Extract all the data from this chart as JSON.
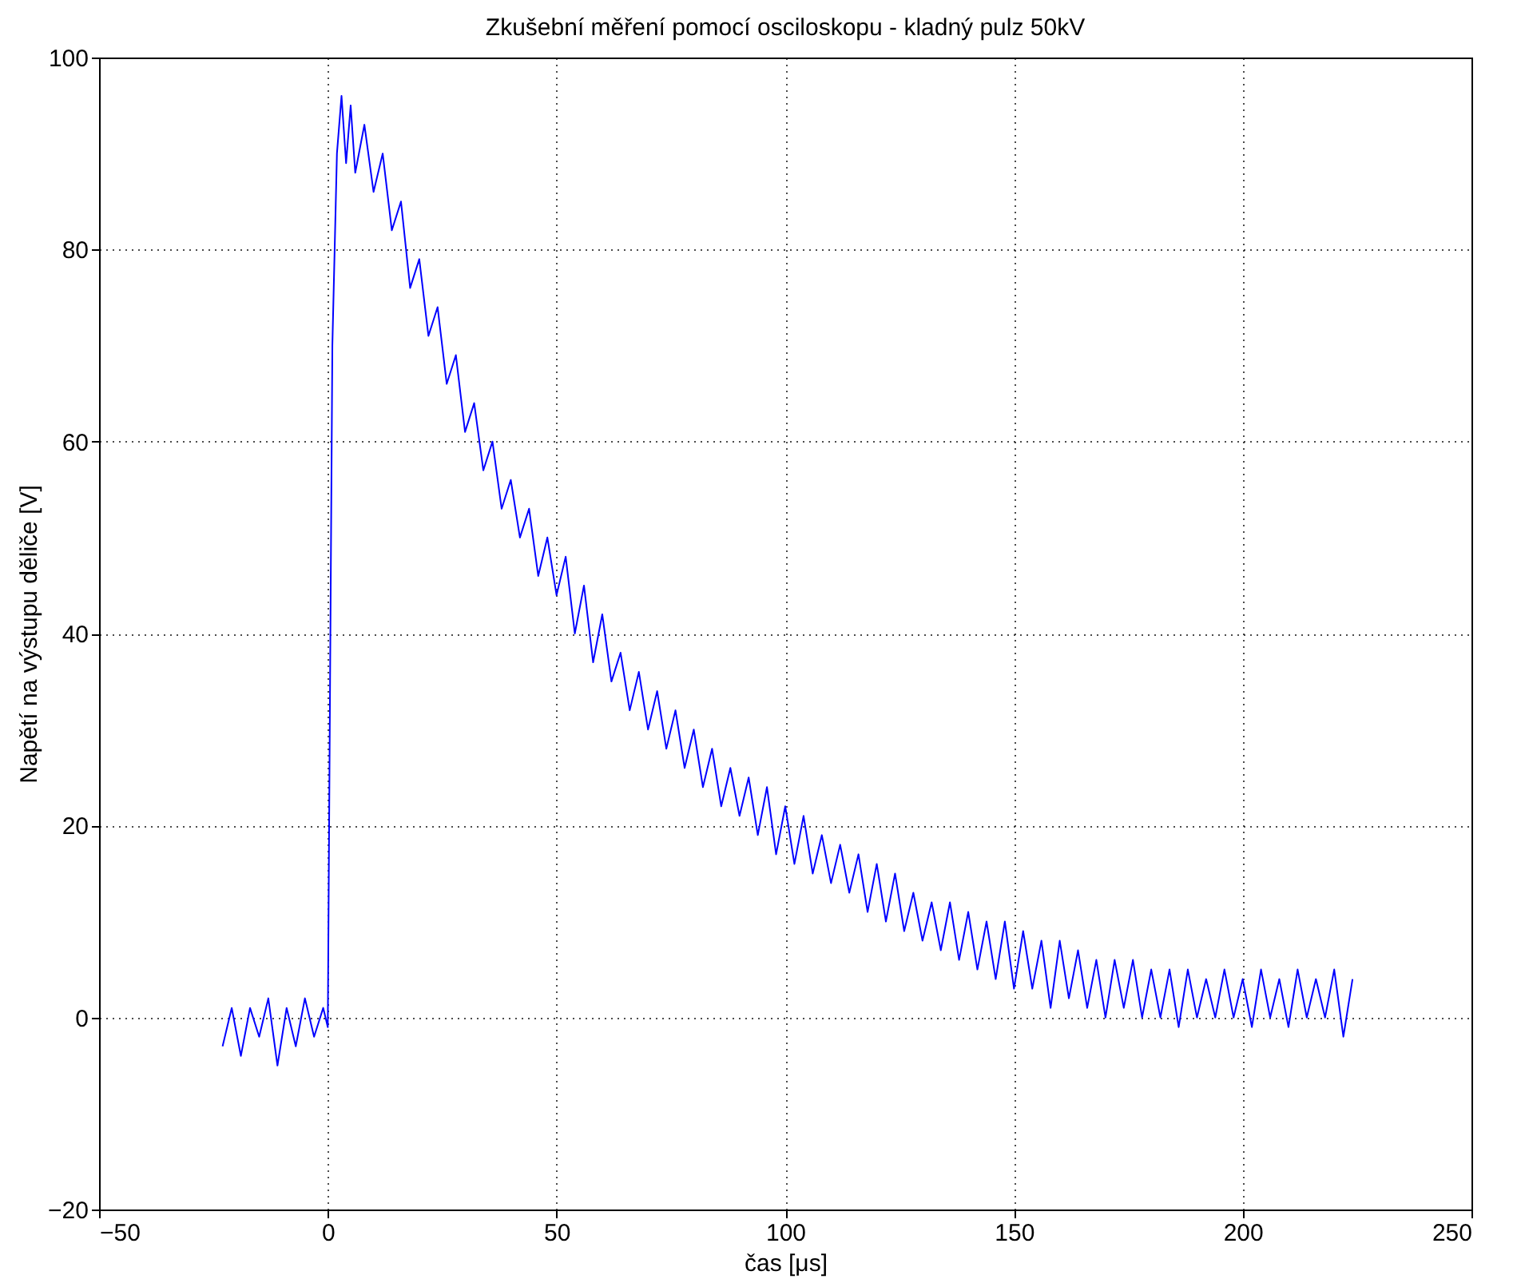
{
  "chart_data": {
    "type": "line",
    "title": "Zkušební měření pomocí osciloskopu - kladný pulz 50kV",
    "xlabel": "čas [μs]",
    "ylabel": "Napětí na výstupu děliče [V]",
    "xlim": [
      -50,
      250
    ],
    "xticks": [
      -50,
      0,
      50,
      100,
      150,
      200,
      250
    ],
    "ylim": [
      -20,
      100
    ],
    "yticks": [
      -20,
      0,
      20,
      40,
      60,
      80,
      100
    ],
    "grid": true,
    "line_style": "solid",
    "marker": "none",
    "series": [
      {
        "color": "#0000ff",
        "x": [
          -23,
          -21,
          -19,
          -17,
          -15,
          -13,
          -11,
          -9,
          -7,
          -5,
          -3,
          -1,
          0,
          0.5,
          1,
          2,
          3,
          4,
          5,
          6,
          8,
          10,
          12,
          14,
          16,
          18,
          20,
          22,
          24,
          26,
          28,
          30,
          32,
          34,
          36,
          38,
          40,
          42,
          44,
          46,
          48,
          50,
          52,
          54,
          56,
          58,
          60,
          62,
          64,
          66,
          68,
          70,
          72,
          74,
          76,
          78,
          80,
          82,
          84,
          86,
          88,
          90,
          92,
          94,
          96,
          98,
          100,
          102,
          104,
          106,
          108,
          110,
          112,
          114,
          116,
          118,
          120,
          122,
          124,
          126,
          128,
          130,
          132,
          134,
          136,
          138,
          140,
          142,
          144,
          146,
          148,
          150,
          152,
          154,
          156,
          158,
          160,
          162,
          164,
          166,
          168,
          170,
          172,
          174,
          176,
          178,
          180,
          182,
          184,
          186,
          188,
          190,
          192,
          194,
          196,
          198,
          200,
          202,
          204,
          206,
          208,
          210,
          212,
          214,
          216,
          218,
          220,
          222,
          224
        ],
        "values": [
          -3,
          1,
          -4,
          1,
          -2,
          2,
          -5,
          1,
          -3,
          2,
          -2,
          1,
          -1,
          35,
          70,
          90,
          96,
          89,
          95,
          88,
          93,
          86,
          90,
          82,
          85,
          76,
          79,
          71,
          74,
          66,
          69,
          61,
          64,
          57,
          60,
          53,
          56,
          50,
          53,
          46,
          50,
          44,
          48,
          40,
          45,
          37,
          42,
          35,
          38,
          32,
          36,
          30,
          34,
          28,
          32,
          26,
          30,
          24,
          28,
          22,
          26,
          21,
          25,
          19,
          24,
          17,
          22,
          16,
          21,
          15,
          19,
          14,
          18,
          13,
          17,
          11,
          16,
          10,
          15,
          9,
          13,
          8,
          12,
          7,
          12,
          6,
          11,
          5,
          10,
          4,
          10,
          3,
          9,
          3,
          8,
          1,
          8,
          2,
          7,
          1,
          6,
          0,
          6,
          1,
          6,
          0,
          5,
          0,
          5,
          -1,
          5,
          0,
          4,
          0,
          5,
          0,
          4,
          -1,
          5,
          0,
          4,
          -1,
          5,
          0,
          4,
          0,
          5,
          -2,
          4
        ]
      }
    ]
  }
}
